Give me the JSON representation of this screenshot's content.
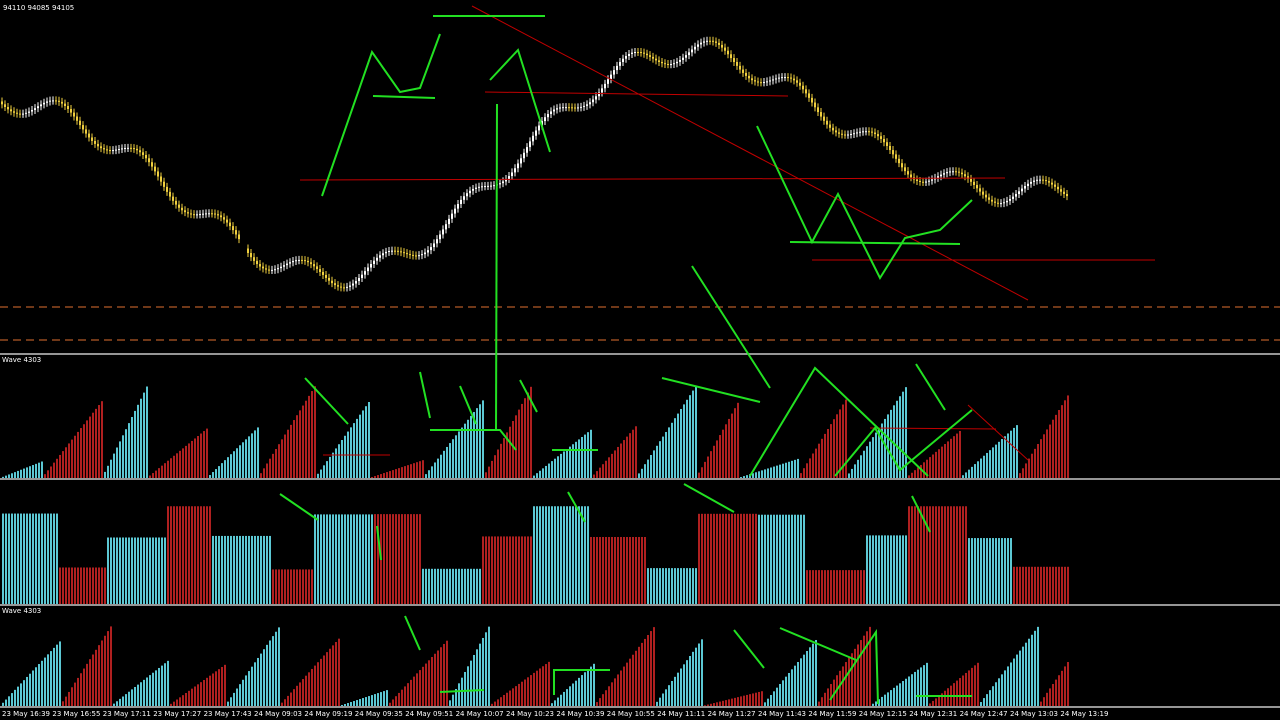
{
  "header": {
    "price": "94110 94085 94105"
  },
  "panels": [
    {
      "label": "Wave 4303"
    },
    {
      "label": "Wave 4303"
    }
  ],
  "time_axis": [
    "23 May 16:39",
    "23 May 16:55",
    "23 May 17:11",
    "23 May 17:27",
    "23 May 17:43",
    "24 May 09:03",
    "24 May 09:19",
    "24 May 09:35",
    "24 May 09:51",
    "24 May 10:07",
    "24 May 10:23",
    "24 May 10:39",
    "24 May 10:55",
    "24 May 11:11",
    "24 May 11:27",
    "24 May 11:43",
    "24 May 11:59",
    "24 May 12:15",
    "24 May 12:31",
    "24 May 12:47",
    "24 May 13:03",
    "24 May 13:19"
  ]
}
